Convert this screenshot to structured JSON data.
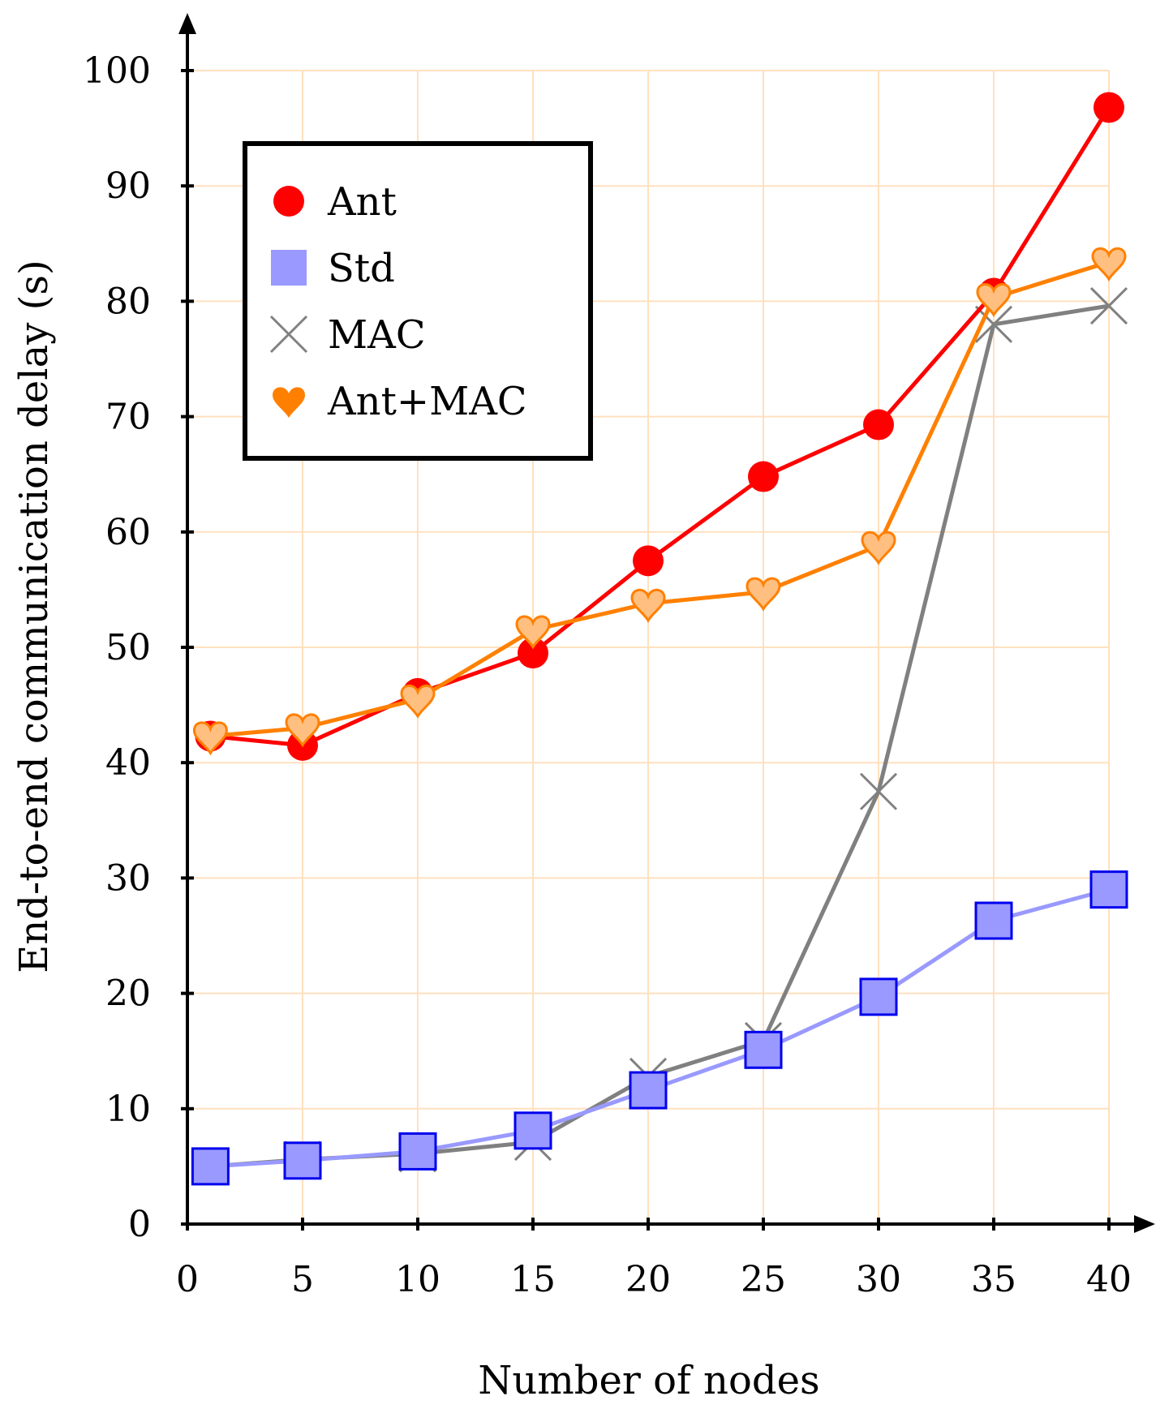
{
  "chart_data": {
    "type": "line",
    "xlabel": "Number of nodes",
    "ylabel": "End-to-end communication delay (s)",
    "xlim": [
      0,
      40
    ],
    "ylim": [
      0,
      100
    ],
    "x_ticks": [
      0,
      5,
      10,
      15,
      20,
      25,
      30,
      35,
      40
    ],
    "y_ticks": [
      0,
      10,
      20,
      30,
      40,
      50,
      60,
      70,
      80,
      90,
      100
    ],
    "grid": true,
    "legend_position": "top-left",
    "x": [
      1,
      5,
      10,
      15,
      20,
      25,
      30,
      35,
      40
    ],
    "series": [
      {
        "name": "Ant",
        "marker": "circle",
        "color": "#ff0000",
        "values": [
          42.3,
          41.5,
          46.0,
          49.5,
          57.5,
          64.8,
          69.3,
          80.7,
          96.8
        ]
      },
      {
        "name": "Std",
        "marker": "square",
        "color": "#9999ff",
        "edge_color": "#0000ee",
        "values": [
          5.0,
          5.5,
          6.3,
          8.1,
          11.6,
          15.1,
          19.7,
          26.3,
          29.0
        ]
      },
      {
        "name": "MAC",
        "marker": "x",
        "color": "#808080",
        "values": [
          5.0,
          5.6,
          6.1,
          7.1,
          12.8,
          15.9,
          37.5,
          78.0,
          79.6
        ]
      },
      {
        "name": "Ant+MAC",
        "marker": "heart",
        "color": "#ff8000",
        "fill_color": "#ffbf80",
        "values": [
          42.3,
          43.0,
          45.5,
          51.5,
          53.8,
          54.8,
          58.8,
          80.3,
          83.4
        ]
      }
    ]
  }
}
